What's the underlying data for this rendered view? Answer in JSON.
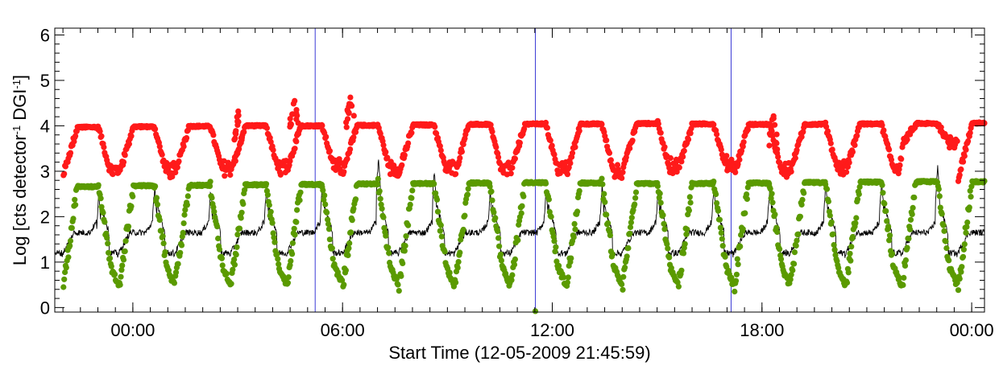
{
  "chart_data": {
    "type": "scatter",
    "title": "",
    "xlabel": "Start Time (12-05-2009 21:45:59)",
    "ylabel_parts": [
      "Log [cts detector",
      "-1",
      " DGI",
      "-1",
      "]"
    ],
    "x_ticks": [
      "00:00",
      "06:00",
      "12:00",
      "18:00",
      "00:00"
    ],
    "x_tick_hours": [
      2.2334,
      8.2334,
      14.2334,
      20.2334,
      26.2334
    ],
    "xlim_hours_from_start": [
      0,
      26.6
    ],
    "y_ticks": [
      "0",
      "1",
      "2",
      "3",
      "4",
      "5",
      "6"
    ],
    "ylim": [
      -0.1,
      6.15
    ],
    "orbit_period_hours": 1.6,
    "colors": {
      "high": "#ff1a1a",
      "low": "#5a9a00",
      "line": "#000000",
      "markers": "#3b3bd6",
      "axis": "#000000"
    },
    "series": [
      {
        "name": "",
        "color": "#ff1a1a",
        "plateau_level": [
          3.97,
          3.98,
          3.99,
          4.0,
          4.0,
          4.01,
          4.02,
          4.03,
          4.04,
          4.04,
          4.05,
          4.04,
          4.03,
          4.03,
          4.04,
          4.05,
          4.06,
          4.06,
          4.07,
          4.08
        ],
        "dip_minimum": [
          2.95,
          2.95,
          3.0,
          3.0,
          3.05,
          3.0,
          3.0,
          2.95,
          3.0,
          2.95,
          3.05,
          3.1,
          2.95,
          3.0,
          3.05,
          3.6,
          2.85,
          3.0,
          3.0,
          2.95
        ],
        "spike_peaks": [
          {
            "hour": 5.25,
            "value": 4.4
          },
          {
            "hour": 6.85,
            "value": 4.7
          },
          {
            "hour": 8.45,
            "value": 4.72
          },
          {
            "hour": 20.55,
            "value": 4.3
          }
        ]
      },
      {
        "name": "",
        "color": "#5a9a00",
        "plateau_level": [
          2.66,
          2.68,
          2.69,
          2.7,
          2.71,
          2.72,
          2.73,
          2.74,
          2.75,
          2.74,
          2.73,
          2.73,
          2.74,
          2.75,
          2.76,
          2.77,
          2.77,
          2.78,
          2.78,
          2.79
        ],
        "dip_minimum": [
          0.5,
          0.5,
          0.55,
          0.55,
          0.55,
          0.5,
          0.5,
          0.5,
          0.5,
          0.5,
          0.5,
          0.5,
          0.5,
          0.5,
          0.5,
          0.5,
          0.45,
          0.5,
          0.5,
          0.5
        ],
        "min_point": {
          "hour": 13.75,
          "value": -0.08
        }
      },
      {
        "name": "",
        "color": "#000000",
        "baseline": 1.65,
        "trough": 1.15,
        "peaks": [
          2.5,
          2.7,
          2.6,
          2.7,
          2.8,
          3.3,
          3.0,
          2.6,
          2.65,
          2.7,
          2.6,
          2.7,
          2.7,
          2.75,
          2.8,
          3.1,
          3.0,
          2.7,
          2.6,
          2.6
        ]
      }
    ],
    "vertical_markers_hours": [
      7.45,
      13.75,
      19.35
    ]
  }
}
